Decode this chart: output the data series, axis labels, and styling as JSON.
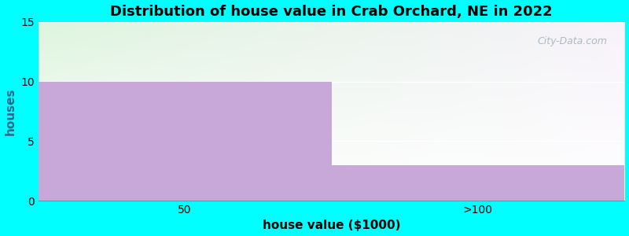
{
  "title": "Distribution of house value in Crab Orchard, NE in 2022",
  "xlabel": "house value ($1000)",
  "ylabel": "houses",
  "categories": [
    "50",
    ">100"
  ],
  "values": [
    10,
    3
  ],
  "bar_color": "#c8a8d8",
  "ylim": [
    0,
    15
  ],
  "yticks": [
    0,
    5,
    10,
    15
  ],
  "background_color": "#00ffff",
  "plot_bg_top_left": "#dff0e0",
  "plot_bg_bottom": "#ffffff",
  "title_fontsize": 13,
  "label_fontsize": 11,
  "tick_fontsize": 10,
  "watermark": "City-Data.com"
}
